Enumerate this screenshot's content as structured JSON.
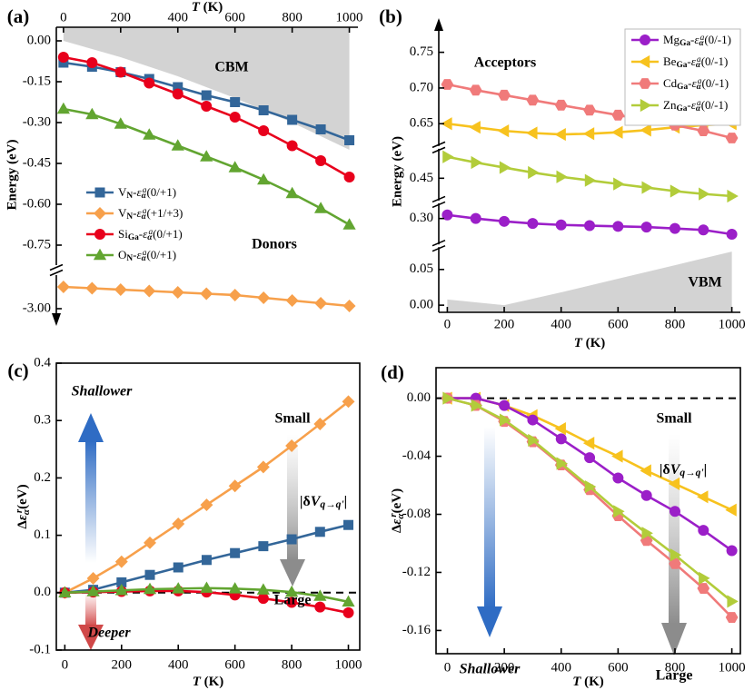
{
  "chart_data": [
    {
      "type": "line",
      "panel": "(a)",
      "xlabel": "T (K)",
      "ylabel": "Energy (eV)",
      "x": [
        0,
        100,
        200,
        300,
        400,
        500,
        600,
        700,
        800,
        900,
        1000
      ],
      "xlim": [
        -25,
        1030
      ],
      "xticks": [
        0,
        200,
        400,
        600,
        800,
        1000
      ],
      "ysegments": [
        [
          -3.05,
          -2.88
        ],
        [
          -0.82,
          0.05
        ]
      ],
      "yticks": [
        {
          "value": 0,
          "label": "0.00"
        },
        -0.15,
        {
          "value": -0.3,
          "label": "-0.30"
        },
        -0.45,
        {
          "value": -0.6,
          "label": "-0.60"
        },
        -0.75,
        {
          "value": -3,
          "label": "-3.00"
        }
      ],
      "shaded": {
        "x": [
          0,
          200,
          400,
          600,
          800,
          1000
        ],
        "values": [
          0,
          -0.06,
          -0.13,
          -0.21,
          -0.3,
          -0.4
        ],
        "color": "#d3d3d3"
      },
      "annotations": [
        "CBM",
        "Donors"
      ],
      "series": [
        {
          "name": "VN-εαa(0/+1)",
          "color": "#336699",
          "marker": "square",
          "values": [
            -0.08,
            -0.095,
            -0.115,
            -0.14,
            -0.17,
            -0.2,
            -0.225,
            -0.255,
            -0.29,
            -0.325,
            -0.365
          ]
        },
        {
          "name": "VN-εαa(+1/+3)",
          "color": "#f7a04b",
          "marker": "diamond",
          "values": [
            -2.92,
            -2.925,
            -2.93,
            -2.935,
            -2.94,
            -2.945,
            -2.95,
            -2.96,
            -2.97,
            -2.98,
            -2.99
          ]
        },
        {
          "name": "SiGa-εαa(0/+1)",
          "color": "#e8001c",
          "marker": "circle",
          "values": [
            -0.06,
            -0.08,
            -0.115,
            -0.155,
            -0.195,
            -0.24,
            -0.28,
            -0.33,
            -0.385,
            -0.44,
            -0.5
          ]
        },
        {
          "name": "ON-εαa(0/+1)",
          "color": "#62a531",
          "marker": "triangle-up",
          "values": [
            -0.25,
            -0.27,
            -0.305,
            -0.345,
            -0.385,
            -0.425,
            -0.465,
            -0.51,
            -0.56,
            -0.615,
            -0.675
          ]
        }
      ]
    },
    {
      "type": "line",
      "panel": "(b)",
      "xlabel": "T (K)",
      "ylabel": "Energy (eV)",
      "x": [
        0,
        100,
        200,
        300,
        400,
        500,
        600,
        700,
        800,
        900,
        1000
      ],
      "xlim": [
        -30,
        1030
      ],
      "xticks": [
        0,
        200,
        400,
        600,
        800,
        1000
      ],
      "ysegments": [
        [
          -0.01,
          0.08
        ],
        [
          0.265,
          0.32
        ],
        [
          0.42,
          0.49
        ],
        [
          0.62,
          0.78
        ]
      ],
      "yticks": [
        {
          "value": 0,
          "label": "0.00"
        },
        0.05,
        {
          "value": 0.3,
          "label": "0.30"
        },
        0.45,
        0.65,
        {
          "value": 0.7,
          "label": "0.70"
        },
        0.75
      ],
      "shaded": {
        "x": [
          0,
          100,
          200,
          400,
          600,
          800,
          1000
        ],
        "values": [
          0.008,
          0.004,
          0,
          0.018,
          0.037,
          0.056,
          0.075
        ],
        "color": "#d3d3d3"
      },
      "annotations": [
        "Acceptors",
        "VBM"
      ],
      "series": [
        {
          "name": "MgGa-εαa(0/-1)",
          "color": "#9b1fc8",
          "marker": "circle",
          "values": [
            0.305,
            0.3,
            0.296,
            0.293,
            0.291,
            0.29,
            0.289,
            0.288,
            0.286,
            0.284,
            0.278
          ]
        },
        {
          "name": "BeGa-εαa(0/-1)",
          "color": "#f7c21e",
          "marker": "triangle-left",
          "values": [
            0.65,
            0.645,
            0.64,
            0.637,
            0.635,
            0.636,
            0.638,
            0.641,
            0.645,
            0.648,
            0.65
          ]
        },
        {
          "name": "CdGa-εαa(0/-1)",
          "color": "#f07a7a",
          "marker": "hexagon",
          "values": [
            0.705,
            0.697,
            0.69,
            0.683,
            0.676,
            0.669,
            0.662,
            0.655,
            0.648,
            0.64,
            0.63
          ]
        },
        {
          "name": "ZnGa-εαa(0/-1)",
          "color": "#b2cc3a",
          "marker": "triangle-right",
          "values": [
            0.48,
            0.472,
            0.465,
            0.458,
            0.452,
            0.447,
            0.442,
            0.437,
            0.432,
            0.428,
            0.425
          ]
        }
      ]
    },
    {
      "type": "line",
      "panel": "(c)",
      "xlabel": "T (K)",
      "ylabel": "Δεαr(eV)",
      "x": [
        0,
        100,
        200,
        300,
        400,
        500,
        600,
        700,
        800,
        900,
        1000
      ],
      "xlim": [
        -30,
        1040
      ],
      "xticks": [
        0,
        200,
        400,
        600,
        800,
        1000
      ],
      "ylim": [
        -0.1,
        0.4
      ],
      "yticks": [
        -0.1,
        {
          "value": 0,
          "label": "0.0"
        },
        0.1,
        0.2,
        0.3,
        0.4
      ],
      "reference_line": 0,
      "annotations": [
        "Shallower",
        "Deeper",
        "Small",
        "|δVq→q'|",
        "Large"
      ],
      "series": [
        {
          "color": "#336699",
          "marker": "square",
          "values": [
            0,
            0.005,
            0.018,
            0.031,
            0.044,
            0.057,
            0.069,
            0.081,
            0.093,
            0.106,
            0.118
          ]
        },
        {
          "color": "#f7a04b",
          "marker": "diamond",
          "values": [
            0,
            0.025,
            0.054,
            0.087,
            0.12,
            0.153,
            0.186,
            0.219,
            0.256,
            0.294,
            0.333
          ]
        },
        {
          "color": "#e8001c",
          "marker": "circle",
          "values": [
            0,
            0.001,
            0.002,
            0.003,
            0.003,
            0.001,
            -0.004,
            -0.01,
            -0.017,
            -0.025,
            -0.035
          ]
        },
        {
          "color": "#62a531",
          "marker": "triangle-up",
          "values": [
            0,
            0.002,
            0.004,
            0.006,
            0.007,
            0.008,
            0.007,
            0.005,
            0.001,
            -0.006,
            -0.016
          ]
        }
      ]
    },
    {
      "type": "line",
      "panel": "(d)",
      "xlabel": "T (K)",
      "ylabel": "Δεαr(eV)",
      "x": [
        0,
        100,
        200,
        300,
        400,
        500,
        600,
        700,
        800,
        900,
        1000
      ],
      "xlim": [
        -40,
        1030
      ],
      "xticks": [
        0,
        200,
        400,
        600,
        800,
        1000
      ],
      "ylim": [
        -0.176,
        0.021
      ],
      "yticks": [
        {
          "value": 0,
          "label": "0.00"
        },
        -0.04,
        -0.08,
        -0.12,
        -0.16
      ],
      "reference_line": 0,
      "annotations": [
        "Small",
        "|δVq→q'|",
        "Shallower",
        "Large"
      ],
      "series": [
        {
          "color": "#f7c21e",
          "marker": "triangle-left",
          "values": [
            0,
            0,
            -0.005,
            -0.012,
            -0.021,
            -0.031,
            -0.04,
            -0.05,
            -0.059,
            -0.068,
            -0.077
          ]
        },
        {
          "color": "#9b1fc8",
          "marker": "circle",
          "values": [
            0,
            0,
            -0.005,
            -0.015,
            -0.028,
            -0.041,
            -0.055,
            -0.067,
            -0.078,
            -0.091,
            -0.105
          ]
        },
        {
          "color": "#f07a7a",
          "marker": "hexagon",
          "values": [
            0,
            -0.005,
            -0.016,
            -0.03,
            -0.046,
            -0.063,
            -0.081,
            -0.098,
            -0.114,
            -0.131,
            -0.151
          ]
        },
        {
          "color": "#b2cc3a",
          "marker": "triangle-right",
          "values": [
            0,
            -0.005,
            -0.015,
            -0.029,
            -0.045,
            -0.061,
            -0.078,
            -0.093,
            -0.108,
            -0.124,
            -0.14
          ]
        }
      ]
    }
  ]
}
